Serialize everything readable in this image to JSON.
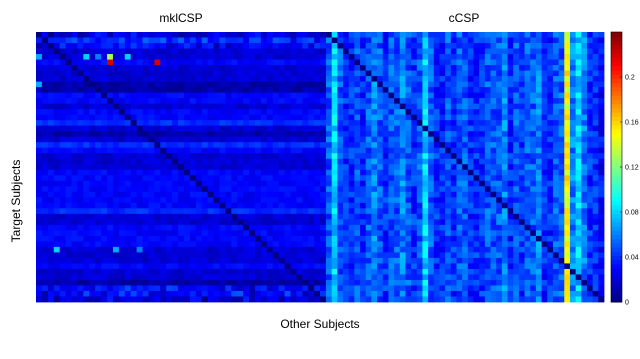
{
  "chart_data": {
    "type": "heatmap",
    "panels": [
      {
        "title": "mklCSP",
        "rows": 49,
        "cols": 49,
        "base_row_values": [
          0.02,
          0.04,
          0.03,
          0.02,
          0.02,
          0.03,
          0.02,
          0.02,
          0.02,
          0.01,
          0.01,
          0.03,
          0.03,
          0.02,
          0.03,
          0.03,
          0.04,
          0.02,
          0.01,
          0.02,
          0.04,
          0.03,
          0.02,
          0.02,
          0.02,
          0.03,
          0.03,
          0.03,
          0.03,
          0.03,
          0.03,
          0.03,
          0.04,
          0.02,
          0.02,
          0.03,
          0.03,
          0.03,
          0.03,
          0.02,
          0.02,
          0.02,
          0.03,
          0.02,
          0.02,
          0.01,
          0.03,
          0.03,
          0.02
        ],
        "highlights": [
          {
            "row": 4,
            "col": 12,
            "value": 0.13
          },
          {
            "row": 4,
            "col": 15,
            "value": 0.08
          },
          {
            "row": 4,
            "col": 0,
            "value": 0.07
          },
          {
            "row": 4,
            "col": 8,
            "value": 0.08
          },
          {
            "row": 4,
            "col": 10,
            "value": 0.06
          },
          {
            "row": 5,
            "col": 12,
            "value": 0.22
          },
          {
            "row": 5,
            "col": 20,
            "value": 0.22
          },
          {
            "row": 9,
            "col": 0,
            "value": 0.07
          },
          {
            "row": 39,
            "col": 3,
            "value": 0.08
          },
          {
            "row": 39,
            "col": 13,
            "value": 0.07
          },
          {
            "row": 39,
            "col": 17,
            "value": 0.06
          }
        ]
      },
      {
        "title": "cCSP",
        "rows": 49,
        "cols": 49,
        "column_values": [
          0.05,
          0.08,
          0.05,
          0.04,
          0.04,
          0.05,
          0.04,
          0.05,
          0.06,
          0.05,
          0.04,
          0.05,
          0.05,
          0.06,
          0.05,
          0.04,
          0.05,
          0.08,
          0.05,
          0.04,
          0.04,
          0.05,
          0.04,
          0.05,
          0.05,
          0.04,
          0.04,
          0.04,
          0.05,
          0.05,
          0.05,
          0.06,
          0.04,
          0.05,
          0.04,
          0.05,
          0.05,
          0.06,
          0.04,
          0.04,
          0.05,
          0.05,
          0.15,
          0.06,
          0.08,
          0.06,
          0.04,
          0.04,
          0.03
        ],
        "highlights": [
          {
            "row": 22,
            "col": 42,
            "value": 0.16
          },
          {
            "row": 42,
            "col": 42,
            "value": 0.17
          },
          {
            "row": 44,
            "col": 43,
            "value": 0.07
          },
          {
            "row": 45,
            "col": 44,
            "value": 0.06
          }
        ]
      }
    ],
    "xlabel": "Other Subjects",
    "ylabel": "Target Subjects",
    "colorbar": {
      "colormap": "jet",
      "min": 0,
      "max": 0.24,
      "ticks": [
        "0",
        "0.04",
        "0.08",
        "0.12",
        "0.16",
        "0.2"
      ],
      "tick_values": [
        0,
        0.04,
        0.08,
        0.12,
        0.16,
        0.2
      ]
    },
    "grid": false,
    "legend": "colorbar-right"
  }
}
